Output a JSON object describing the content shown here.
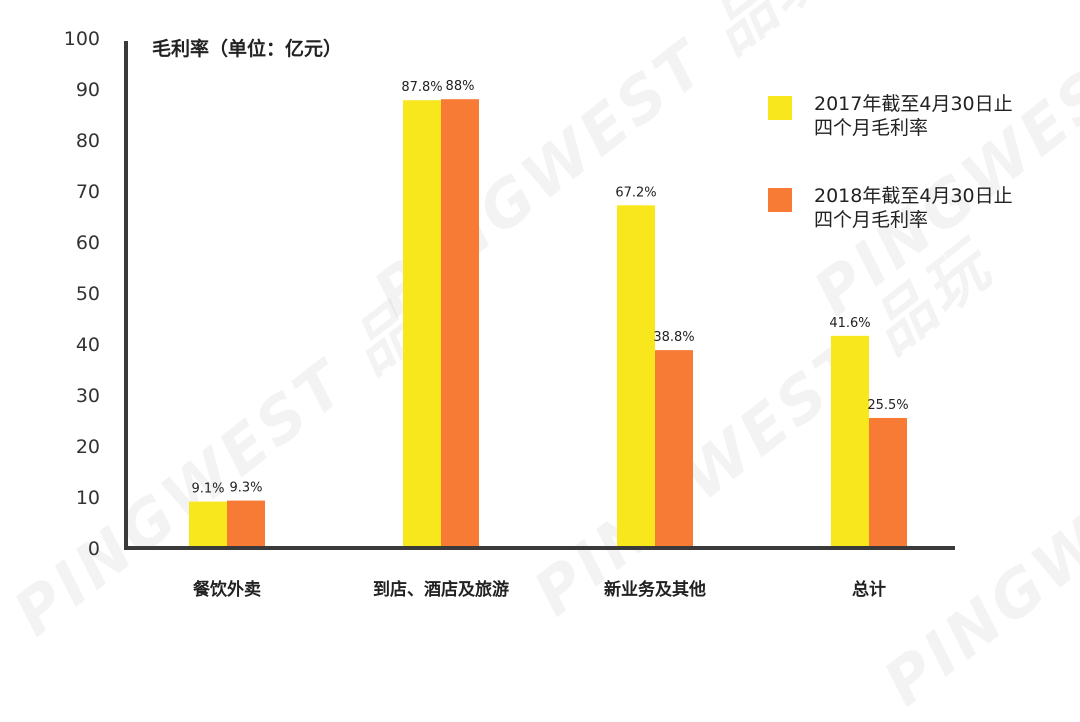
{
  "chart_data": {
    "type": "bar",
    "title": "毛利率（单位：亿元）",
    "categories": [
      "餐饮外卖",
      "到店、酒店及旅游",
      "新业务及其他",
      "总计"
    ],
    "series": [
      {
        "name": "2017年截至4月30日止四个月毛利率",
        "values": [
          9.1,
          87.8,
          67.2,
          41.6
        ],
        "labels": [
          "9.1%",
          "87.8%",
          "67.2%",
          "41.6%"
        ],
        "color": "#F8E71C"
      },
      {
        "name": "2018年截至4月30日止四个月毛利率",
        "values": [
          9.3,
          88,
          38.8,
          25.5
        ],
        "labels": [
          "9.3%",
          "88%",
          "38.8%",
          "25.5%"
        ],
        "color": "#F77A35"
      }
    ],
    "ylim": [
      0,
      100
    ],
    "yticks": [
      0,
      10,
      20,
      30,
      40,
      50,
      60,
      70,
      80,
      90,
      100
    ],
    "xlabel": "",
    "ylabel": "",
    "grid": false,
    "legend_position": "top-right"
  },
  "legend": {
    "items": [
      {
        "line1": "2017年截至4月30日止",
        "line2": "四个月毛利率"
      },
      {
        "line1": "2018年截至4月30日止",
        "line2": "四个月毛利率"
      }
    ]
  },
  "watermark": {
    "text": "PINGWEST 品玩"
  }
}
